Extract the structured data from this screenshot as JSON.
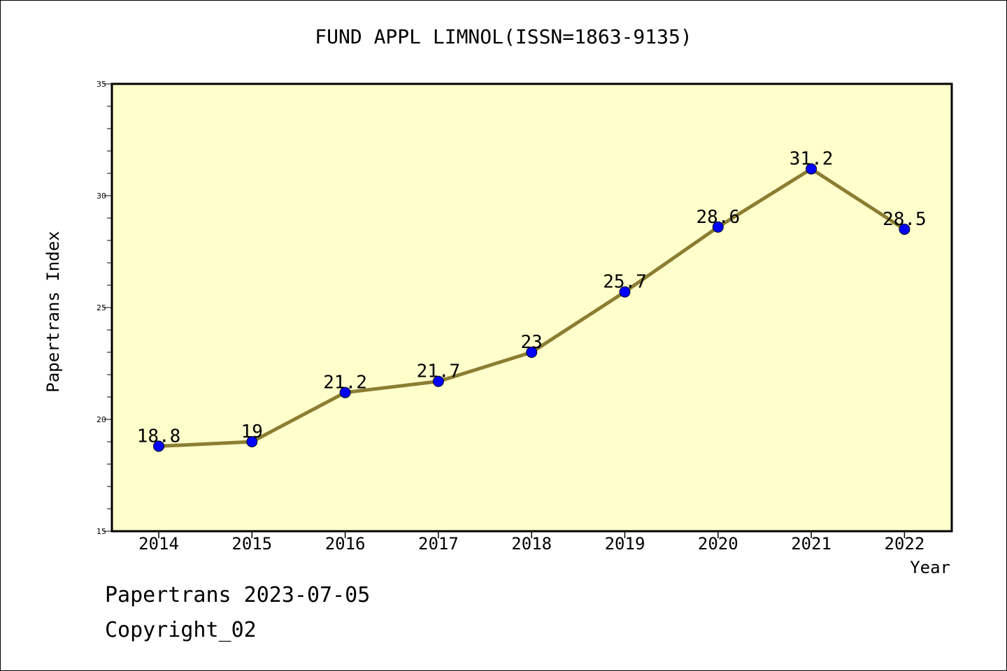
{
  "chart_data": {
    "type": "line",
    "title": "FUND APPL LIMNOL(ISSN=1863-9135)",
    "xlabel": "Year",
    "ylabel": "Papertrans Index",
    "categories": [
      "2014",
      "2015",
      "2016",
      "2017",
      "2018",
      "2019",
      "2020",
      "2021",
      "2022"
    ],
    "series": [
      {
        "values": [
          18.8,
          19,
          21.2,
          21.7,
          23,
          25.7,
          28.6,
          31.2,
          28.5
        ],
        "labels": [
          "18.8",
          "19",
          "21.2",
          "21.7",
          "23",
          "25.7",
          "28.6",
          "31.2",
          "28.5"
        ]
      }
    ],
    "ylim": [
      15,
      35
    ],
    "y_ticks": [
      "15",
      "20",
      "25",
      "30",
      "35"
    ],
    "grid": false,
    "colors": {
      "plot_background": "#FFFFCC",
      "line": "#8B7D32",
      "marker": "#0000FF",
      "axis": "#000000"
    }
  },
  "footer": {
    "date_text": "Papertrans 2023-07-05",
    "copyright_text": "Copyright_02"
  }
}
